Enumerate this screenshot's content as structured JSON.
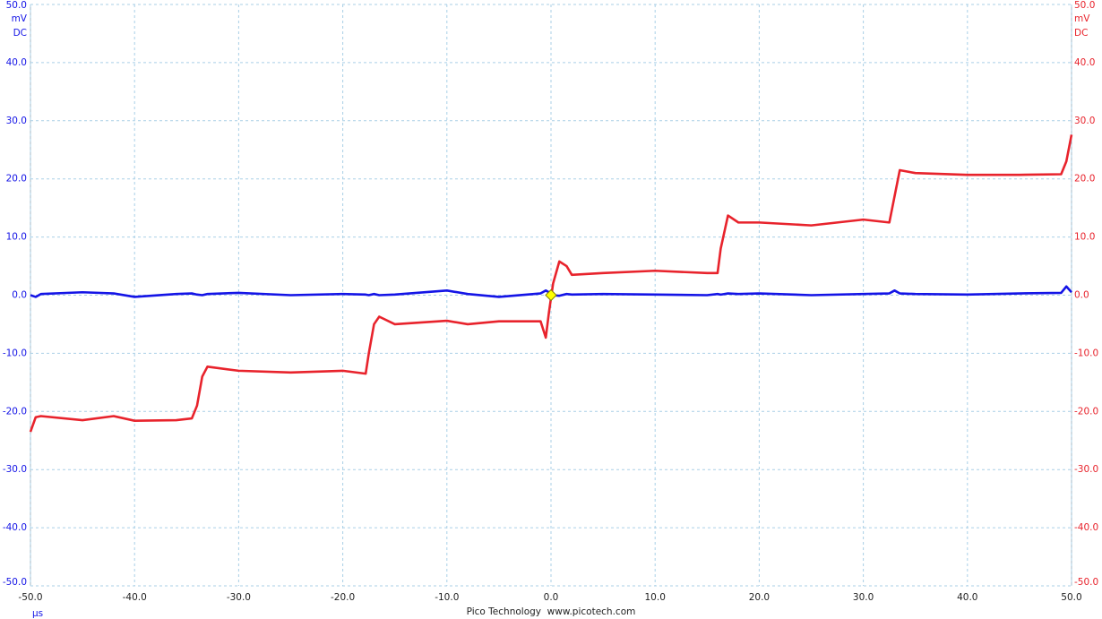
{
  "chart_data": {
    "type": "line",
    "x_unit": "µs",
    "y_unit": "mV",
    "y_coupling": "DC",
    "y2_unit": "mV",
    "y2_coupling": "DC",
    "footer": "Pico Technology  www.picotech.com",
    "grid": true,
    "xlim": [
      -50,
      50
    ],
    "ylim": [
      -50,
      50
    ],
    "y2lim": [
      -50,
      50
    ],
    "xticks": [
      {
        "value": -50,
        "label": "-50.0"
      },
      {
        "value": -40,
        "label": "-40.0"
      },
      {
        "value": -30,
        "label": "-30.0"
      },
      {
        "value": -20,
        "label": "-20.0"
      },
      {
        "value": -10,
        "label": "-10.0"
      },
      {
        "value": 0,
        "label": "0.0"
      },
      {
        "value": 10,
        "label": "10.0"
      },
      {
        "value": 20,
        "label": "20.0"
      },
      {
        "value": 30,
        "label": "30.0"
      },
      {
        "value": 40,
        "label": "40.0"
      },
      {
        "value": 50,
        "label": "50.0"
      }
    ],
    "yticks": [
      {
        "value": 50,
        "label": "50.0"
      },
      {
        "value": 40,
        "label": "40.0"
      },
      {
        "value": 30,
        "label": "30.0"
      },
      {
        "value": 20,
        "label": "20.0"
      },
      {
        "value": 10,
        "label": "10.0"
      },
      {
        "value": 0,
        "label": "0.0"
      },
      {
        "value": -10,
        "label": "-10.0"
      },
      {
        "value": -20,
        "label": "-20.0"
      },
      {
        "value": -30,
        "label": "-30.0"
      },
      {
        "value": -40,
        "label": "-40.0"
      },
      {
        "value": -50,
        "label": "-50.0"
      }
    ],
    "y2ticks": [
      {
        "value": 50,
        "label": "50.0"
      },
      {
        "value": 40,
        "label": "40.0"
      },
      {
        "value": 30,
        "label": "30.0"
      },
      {
        "value": 20,
        "label": "20.0"
      },
      {
        "value": 10,
        "label": "10.0"
      },
      {
        "value": 0,
        "label": "0.0"
      },
      {
        "value": -10,
        "label": "-10.0"
      },
      {
        "value": -20,
        "label": "-20.0"
      },
      {
        "value": -30,
        "label": "-30.0"
      },
      {
        "value": -40,
        "label": "-40.0"
      },
      {
        "value": -50,
        "label": "-50.0"
      }
    ],
    "x": [
      -50,
      -49.5,
      -49,
      -45,
      -42,
      -40,
      -36,
      -34.5,
      -34,
      -33.5,
      -33,
      -30,
      -25,
      -20,
      -17.8,
      -17.5,
      -17,
      -16.5,
      -15,
      -10,
      -8,
      -5,
      -1,
      -0.5,
      -0.2,
      0.2,
      0.8,
      1.5,
      2,
      5,
      10,
      15,
      16,
      16.3,
      17,
      18,
      20,
      25,
      30,
      32.5,
      33,
      33.5,
      35,
      40,
      45,
      49,
      49.5,
      50
    ],
    "series": [
      {
        "color": "#1414e6",
        "axis": "y",
        "values": [
          0,
          -0.3,
          0.2,
          0.5,
          0.3,
          -0.3,
          0.2,
          0.3,
          0.1,
          0,
          0.2,
          0.4,
          0,
          0.2,
          0.1,
          0,
          0.2,
          0,
          0.1,
          0.8,
          0.2,
          -0.3,
          0.3,
          0.8,
          0.5,
          0,
          -0.1,
          0.2,
          0.1,
          0.2,
          0.1,
          0,
          0.2,
          0.1,
          0.3,
          0.2,
          0.3,
          0,
          0.2,
          0.3,
          0.8,
          0.3,
          0.2,
          0.1,
          0.3,
          0.4,
          1.5,
          0.5
        ]
      },
      {
        "color": "#e8232c",
        "axis": "y2",
        "values": [
          -23.5,
          -21,
          -20.8,
          -21.5,
          -20.8,
          -21.6,
          -21.5,
          -21.2,
          -19,
          -14,
          -12.3,
          -13,
          -13.3,
          -13,
          -13.5,
          -10,
          -5,
          -3.7,
          -5,
          -4.4,
          -5,
          -4.5,
          -4.5,
          -7.3,
          -3,
          2,
          5.8,
          5,
          3.5,
          3.8,
          4.2,
          3.8,
          3.8,
          8,
          13.7,
          12.5,
          12.5,
          12,
          13,
          12.5,
          17,
          21.5,
          21,
          20.7,
          20.7,
          20.8,
          23,
          27.6
        ]
      }
    ]
  }
}
